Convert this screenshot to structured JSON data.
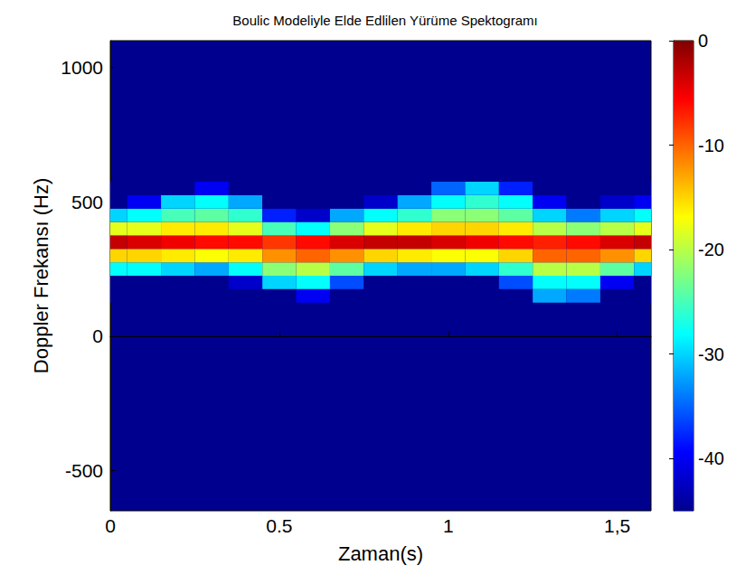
{
  "chart_data": {
    "type": "heatmap",
    "title": "Boulic Modeliyle Elde Edlilen Yürüme Spektogramı",
    "xlabel": "Zaman(s)",
    "ylabel": "Doppler Frekansı (Hz)",
    "x": [
      0,
      0.1,
      0.2,
      0.3,
      0.4,
      0.5,
      0.6,
      0.7,
      0.8,
      0.9,
      1.0,
      1.1,
      1.2,
      1.3,
      1.4,
      1.5,
      1.6
    ],
    "y": [
      150,
      200,
      250,
      300,
      350,
      400,
      450,
      500,
      550
    ],
    "values": [
      [
        -45,
        -45,
        -45,
        -45,
        -45,
        -45,
        -40,
        -45,
        -45,
        -45,
        -45,
        -45,
        -45,
        -32,
        -34,
        -45,
        -45
      ],
      [
        -45,
        -45,
        -45,
        -45,
        -42,
        -30,
        -28,
        -36,
        -45,
        -45,
        -45,
        -45,
        -36,
        -28,
        -28,
        -40,
        -45
      ],
      [
        -28,
        -28,
        -30,
        -32,
        -28,
        -22,
        -20,
        -24,
        -30,
        -32,
        -32,
        -30,
        -26,
        -20,
        -20,
        -24,
        -30
      ],
      [
        -15,
        -15,
        -16,
        -17,
        -16,
        -12,
        -10,
        -12,
        -15,
        -16,
        -17,
        -17,
        -15,
        -10,
        -10,
        -12,
        -15
      ],
      [
        -3,
        -4,
        -5,
        -6,
        -6,
        -8,
        -6,
        -4,
        -3,
        -3,
        -4,
        -5,
        -6,
        -7,
        -6,
        -4,
        -3
      ],
      [
        -18,
        -18,
        -16,
        -16,
        -18,
        -25,
        -28,
        -22,
        -18,
        -16,
        -15,
        -15,
        -16,
        -20,
        -22,
        -20,
        -18
      ],
      [
        -30,
        -28,
        -25,
        -24,
        -26,
        -38,
        -42,
        -32,
        -28,
        -26,
        -22,
        -22,
        -24,
        -30,
        -34,
        -30,
        -28
      ],
      [
        -45,
        -40,
        -30,
        -28,
        -32,
        -45,
        -45,
        -45,
        -42,
        -32,
        -28,
        -26,
        -28,
        -40,
        -45,
        -42,
        -40
      ],
      [
        -45,
        -45,
        -45,
        -40,
        -45,
        -45,
        -45,
        -45,
        -45,
        -45,
        -35,
        -30,
        -38,
        -45,
        -45,
        -45,
        -45
      ]
    ],
    "xlim": [
      0,
      1.6
    ],
    "xticks": [
      0,
      0.5,
      1,
      {
        "value": 1.5,
        "label": "1,5"
      }
    ],
    "ylim": [
      -650,
      1100
    ],
    "yticks": [
      -500,
      0,
      500,
      1000
    ],
    "colorbar": {
      "range": [
        -45,
        0
      ],
      "ticks": [
        0,
        -10,
        -20,
        -30,
        -40
      ]
    }
  }
}
